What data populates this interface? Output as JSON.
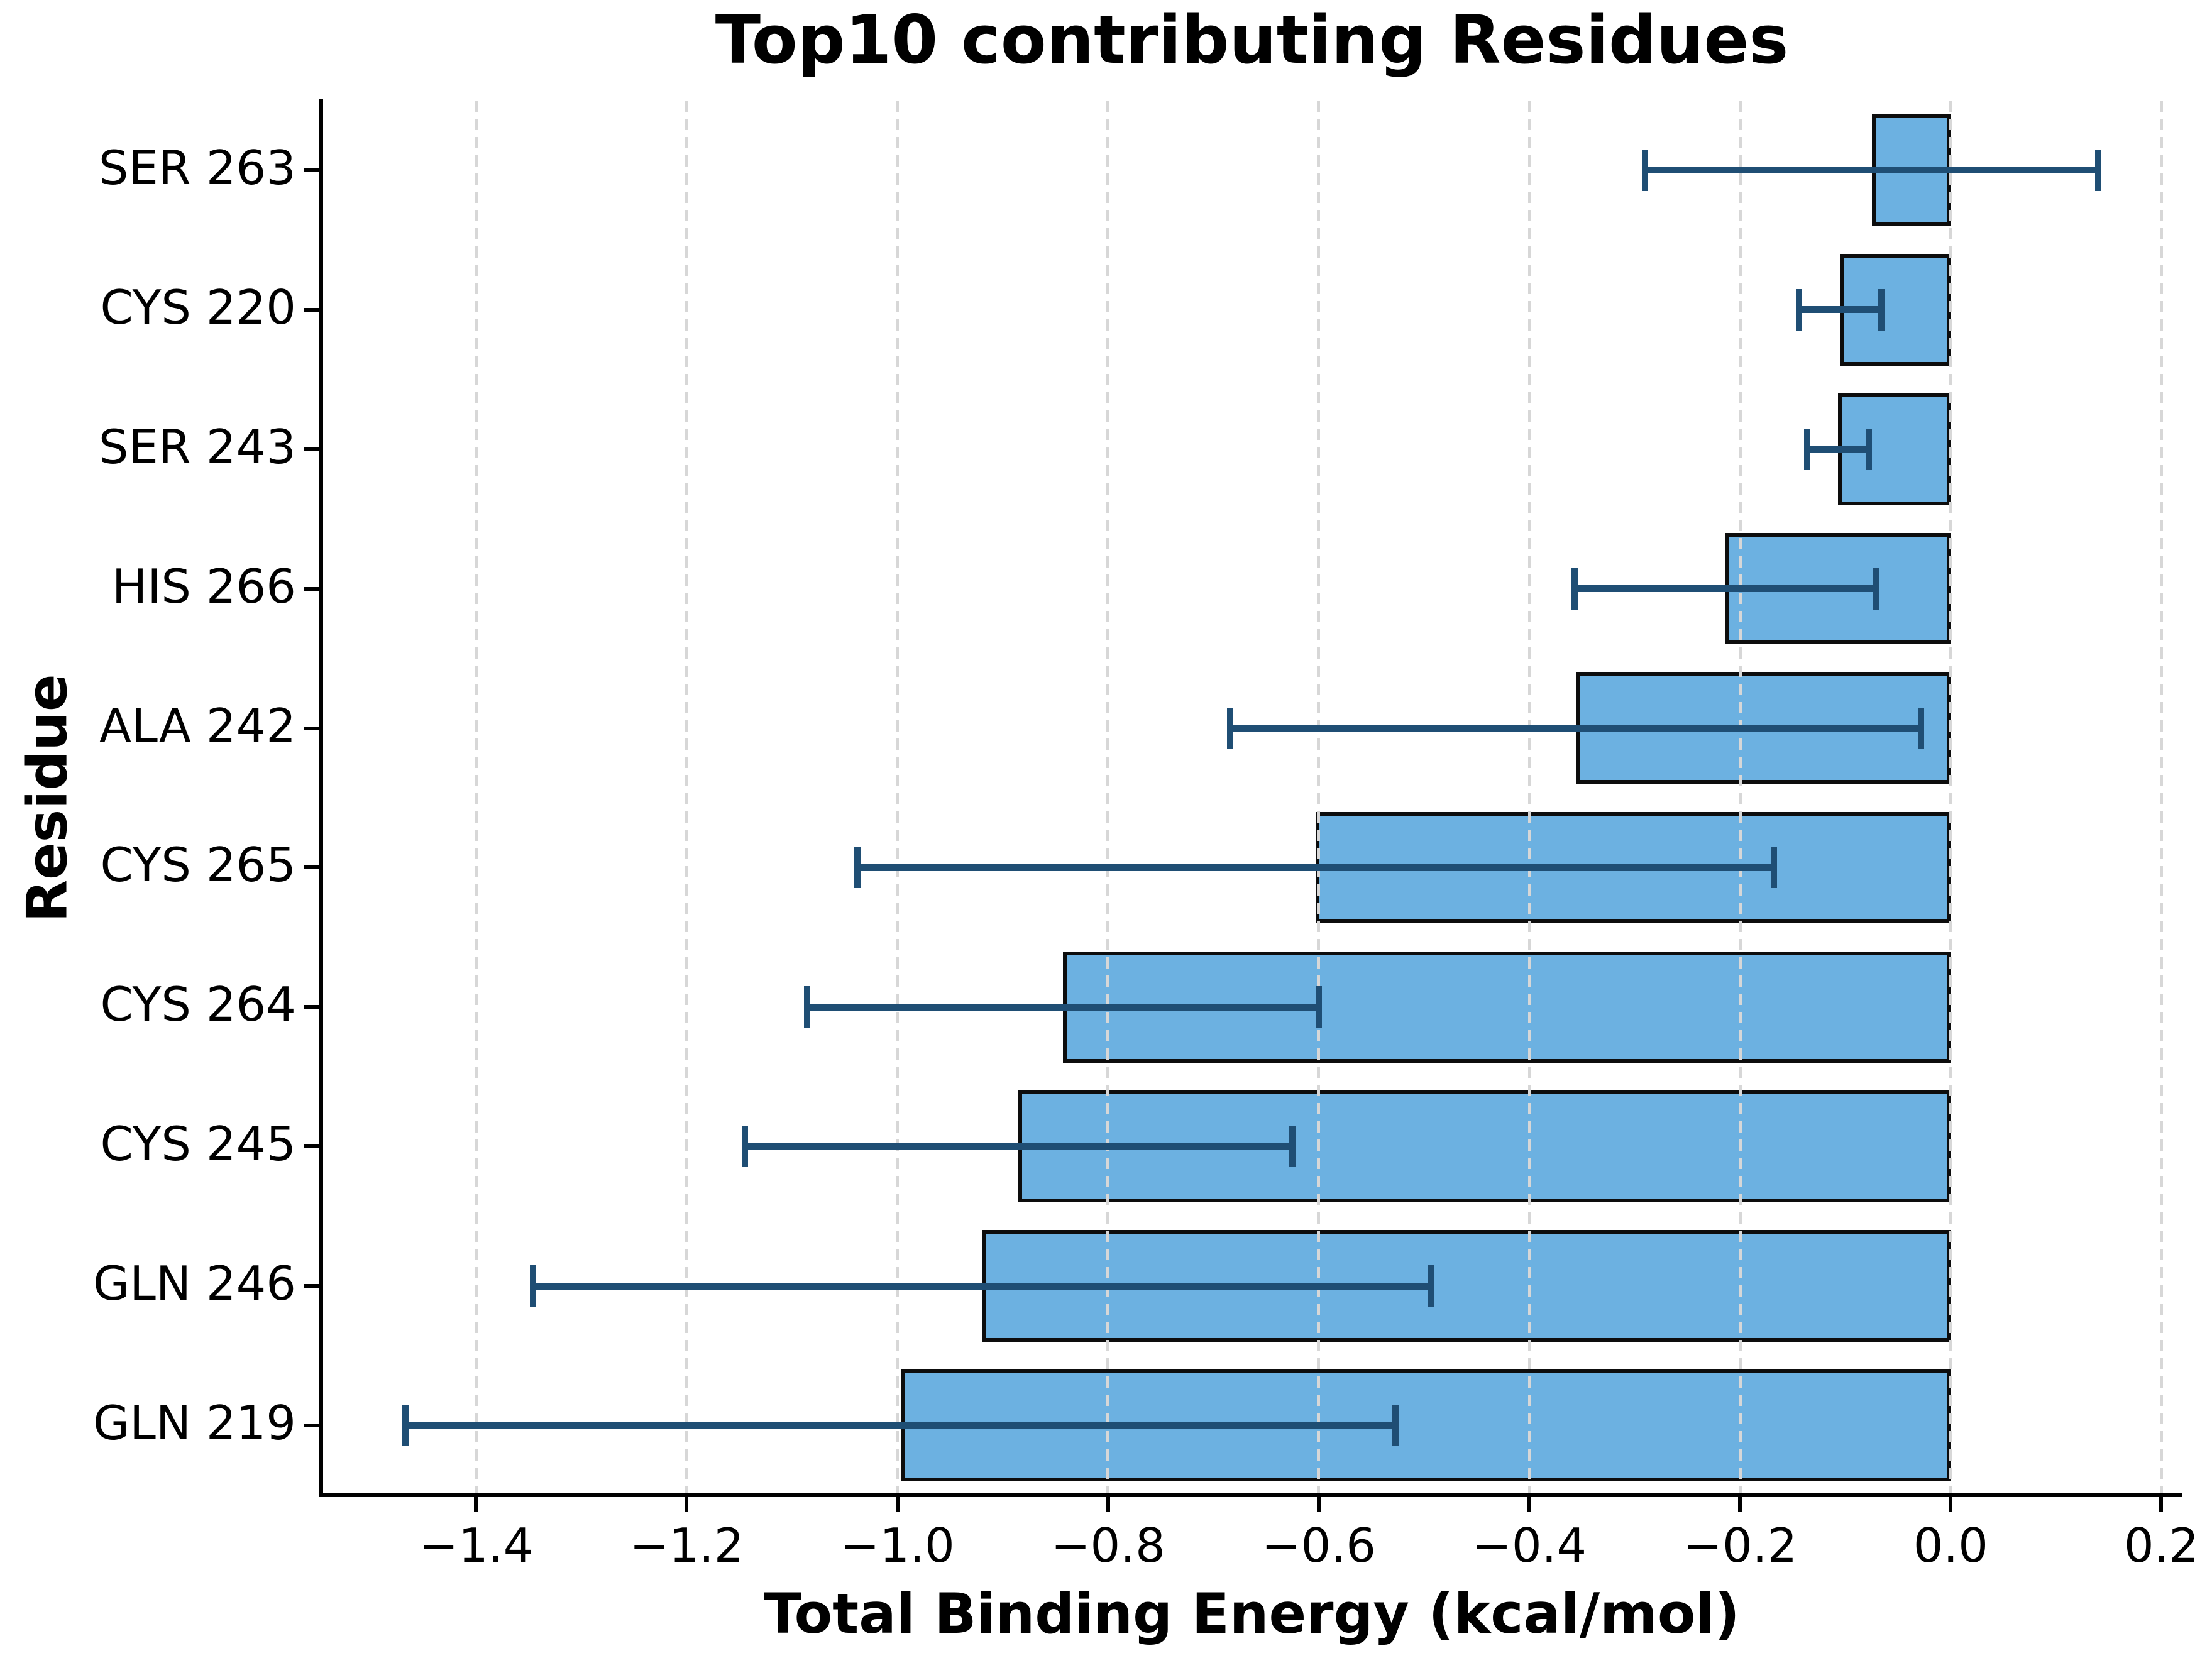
{
  "chart_data": {
    "type": "bar",
    "orientation": "horizontal",
    "title": "Top10 contributing Residues",
    "xlabel": "Total Binding Energy (kcal/mol)",
    "ylabel": "Residue",
    "categories": [
      "SER 263",
      "CYS 220",
      "SER 243",
      "HIS 266",
      "ALA 242",
      "CYS 265",
      "CYS 264",
      "CYS 245",
      "GLN 246",
      "GLN 219"
    ],
    "values": [
      -0.075,
      -0.105,
      -0.107,
      -0.214,
      -0.356,
      -0.603,
      -0.843,
      -0.885,
      -0.92,
      -0.997
    ],
    "errors": [
      0.215,
      0.039,
      0.029,
      0.143,
      0.328,
      0.435,
      0.243,
      0.26,
      0.426,
      0.47
    ],
    "xlim": [
      -1.547,
      0.22
    ],
    "xticks": [
      -1.4,
      -1.2,
      -1.0,
      -0.8,
      -0.6,
      -0.4,
      -0.2,
      0.0,
      0.2
    ],
    "xtick_labels": [
      "−1.4",
      "−1.2",
      "−1.0",
      "−0.8",
      "−0.6",
      "−0.4",
      "−0.2",
      "0.0",
      "0.2"
    ],
    "grid": "vertical-dashed",
    "legend": "none",
    "bar_fill_color": "#6cb1e1",
    "bar_edge_color": "#0d0d0d",
    "error_bar_color": "#1f4e74",
    "grid_color": "#d7d7d7",
    "spine_color": "#000000",
    "background_color": "#ffffff"
  }
}
